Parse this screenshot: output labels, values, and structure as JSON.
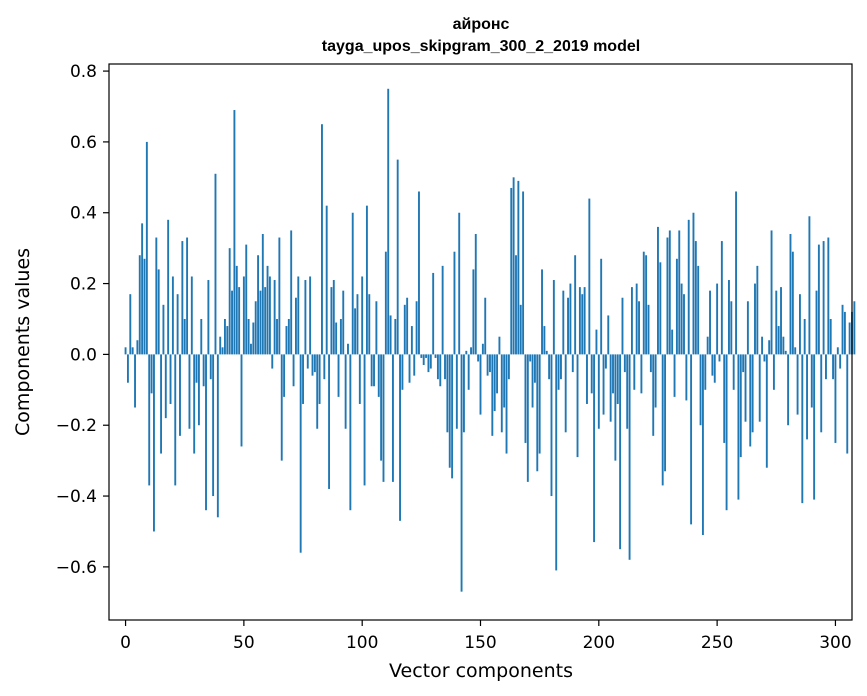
{
  "chart_data": {
    "type": "bar",
    "title": "айронс",
    "subtitle": "tayga_upos_skipgram_300_2_2019 model",
    "xlabel": "Vector components",
    "ylabel": "Components values",
    "xlim": [
      -7,
      307
    ],
    "ylim": [
      -0.75,
      0.82
    ],
    "xticks": [
      0,
      50,
      100,
      150,
      200,
      250,
      300
    ],
    "yticks": [
      -0.6,
      -0.4,
      -0.2,
      0.0,
      0.2,
      0.4,
      0.6,
      0.8
    ],
    "xtick_labels": [
      "0",
      "50",
      "100",
      "150",
      "200",
      "250",
      "300"
    ],
    "ytick_labels": [
      "−0.6",
      "−0.4",
      "−0.2",
      "0.0",
      "0.2",
      "0.4",
      "0.6",
      "0.8"
    ],
    "bar_color": "#1f77b4",
    "grid": false,
    "values": [
      0.02,
      -0.08,
      0.17,
      0.02,
      -0.15,
      0.04,
      0.28,
      0.37,
      0.27,
      0.6,
      -0.37,
      -0.11,
      -0.5,
      0.33,
      0.24,
      -0.28,
      0.14,
      -0.18,
      0.38,
      -0.14,
      0.22,
      -0.37,
      0.17,
      -0.23,
      0.32,
      0.1,
      0.33,
      -0.21,
      0.22,
      -0.28,
      -0.08,
      -0.2,
      0.1,
      -0.09,
      -0.44,
      0.21,
      -0.07,
      -0.4,
      0.51,
      -0.46,
      0.05,
      0.02,
      0.1,
      0.08,
      0.3,
      0.18,
      0.69,
      0.25,
      0.19,
      -0.26,
      0.22,
      0.31,
      0.1,
      0.03,
      0.09,
      0.15,
      0.28,
      0.18,
      0.34,
      0.19,
      0.25,
      0.22,
      -0.04,
      0.21,
      0.1,
      0.33,
      -0.3,
      -0.12,
      0.08,
      0.1,
      0.35,
      -0.09,
      0.16,
      0.22,
      -0.56,
      -0.14,
      0.21,
      -0.04,
      0.22,
      -0.06,
      -0.05,
      -0.21,
      -0.14,
      0.65,
      -0.07,
      0.42,
      -0.38,
      0.19,
      0.21,
      0.09,
      -0.12,
      0.1,
      0.18,
      -0.21,
      0.03,
      -0.44,
      0.4,
      0.13,
      0.17,
      -0.14,
      0.22,
      -0.37,
      0.42,
      0.17,
      -0.09,
      -0.09,
      0.15,
      -0.12,
      -0.3,
      -0.36,
      0.29,
      0.75,
      0.11,
      -0.36,
      0.1,
      0.55,
      -0.47,
      -0.1,
      0.14,
      0.16,
      -0.08,
      0.08,
      -0.06,
      0.15,
      0.46,
      -0.01,
      -0.03,
      -0.01,
      -0.05,
      -0.04,
      0.23,
      -0.01,
      -0.07,
      -0.09,
      0.25,
      -0.07,
      -0.22,
      -0.32,
      -0.35,
      0.29,
      -0.21,
      0.4,
      -0.67,
      -0.22,
      0.01,
      -0.1,
      0.02,
      0.24,
      0.34,
      -0.02,
      -0.17,
      0.03,
      0.16,
      -0.06,
      -0.05,
      -0.23,
      -0.16,
      -0.11,
      0.05,
      -0.22,
      -0.15,
      -0.28,
      -0.07,
      0.47,
      0.5,
      0.28,
      0.49,
      0.14,
      0.46,
      -0.25,
      -0.36,
      -0.02,
      -0.15,
      -0.08,
      -0.33,
      -0.28,
      0.24,
      0.08,
      0.01,
      -0.07,
      -0.4,
      0.21,
      -0.61,
      -0.1,
      -0.07,
      0.18,
      -0.22,
      0.16,
      0.2,
      -0.05,
      0.28,
      -0.29,
      0.19,
      0.17,
      0.19,
      -0.14,
      0.44,
      -0.11,
      -0.53,
      0.07,
      -0.21,
      0.27,
      -0.17,
      -0.04,
      0.11,
      -0.19,
      -0.11,
      -0.3,
      -0.14,
      -0.55,
      0.16,
      -0.05,
      -0.21,
      -0.58,
      0.19,
      -0.1,
      0.2,
      0.15,
      -0.11,
      0.29,
      0.28,
      0.14,
      -0.05,
      -0.23,
      -0.15,
      0.36,
      0.26,
      -0.37,
      -0.33,
      0.33,
      0.35,
      0.07,
      -0.12,
      0.27,
      0.35,
      0.2,
      0.17,
      -0.13,
      0.38,
      -0.48,
      0.4,
      0.32,
      0.25,
      -0.2,
      -0.51,
      -0.1,
      0.05,
      0.18,
      -0.06,
      -0.08,
      0.2,
      -0.02,
      0.32,
      -0.25,
      -0.44,
      0.21,
      0.15,
      -0.1,
      0.46,
      -0.41,
      -0.29,
      -0.05,
      -0.19,
      0.15,
      -0.26,
      -0.22,
      0.2,
      0.25,
      -0.19,
      0.05,
      -0.02,
      -0.32,
      0.04,
      0.35,
      -0.1,
      0.18,
      0.08,
      0.19,
      0.05,
      0.01,
      -0.2,
      0.34,
      0.29,
      0.02,
      -0.17,
      0.17,
      -0.42,
      0.1,
      -0.24,
      0.39,
      -0.15,
      -0.41,
      0.18,
      0.31,
      -0.22,
      0.32,
      -0.07,
      0.33,
      0.1,
      -0.07,
      -0.25,
      0.02,
      -0.04,
      0.14,
      0.12,
      -0.28,
      0.09,
      0.12,
      0.15
    ]
  }
}
